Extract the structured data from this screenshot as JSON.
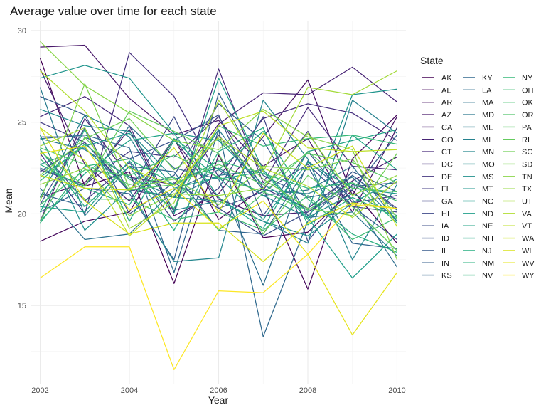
{
  "chart_data": {
    "type": "line",
    "title": "Average value over time for each state",
    "xlabel": "Year",
    "ylabel": "Mean",
    "legend_title": "State",
    "legend_position": "right",
    "grid": true,
    "xlim": [
      2001.8,
      2010.2
    ],
    "ylim": [
      10.7,
      30.5
    ],
    "x_ticks": [
      2002,
      2004,
      2006,
      2008,
      2010
    ],
    "y_ticks": [
      15,
      20,
      25,
      30
    ],
    "x": [
      2002,
      2003,
      2004,
      2005,
      2006,
      2007,
      2008,
      2009,
      2010
    ],
    "series": [
      {
        "name": "AK",
        "color": "#440154",
        "values": [
          28.5,
          21.5,
          22.3,
          16.2,
          23.2,
          18.7,
          19.0,
          21.3,
          18.4
        ]
      },
      {
        "name": "AL",
        "color": "#46085c",
        "values": [
          18.5,
          19.6,
          20.1,
          24.1,
          19.7,
          21.4,
          15.9,
          23.0,
          25.4
        ]
      },
      {
        "name": "AR",
        "color": "#471063",
        "values": [
          20.9,
          21.7,
          24.6,
          19.9,
          21.1,
          24.2,
          27.3,
          21.0,
          25.3
        ]
      },
      {
        "name": "AZ",
        "color": "#481769",
        "values": [
          29.1,
          29.2,
          26.3,
          24.3,
          25.1,
          22.6,
          24.1,
          20.1,
          24.7
        ]
      },
      {
        "name": "CA",
        "color": "#481d6f",
        "values": [
          27.9,
          22.7,
          20.7,
          24.1,
          20.8,
          19.9,
          20.1,
          21.8,
          23.1
        ]
      },
      {
        "name": "CO",
        "color": "#482475",
        "values": [
          19.6,
          25.2,
          22.0,
          21.6,
          24.9,
          26.6,
          26.5,
          28.0,
          26.1
        ]
      },
      {
        "name": "CT",
        "color": "#472a7a",
        "values": [
          25.3,
          26.4,
          24.8,
          20.1,
          27.9,
          21.7,
          25.8,
          22.6,
          22.4
        ]
      },
      {
        "name": "DC",
        "color": "#46307e",
        "values": [
          23.3,
          20.0,
          28.8,
          26.4,
          22.0,
          25.2,
          26.0,
          25.5,
          24.0
        ]
      },
      {
        "name": "DE",
        "color": "#453781",
        "values": [
          22.4,
          21.6,
          23.4,
          23.1,
          25.3,
          21.4,
          20.3,
          22.1,
          20.3
        ]
      },
      {
        "name": "FL",
        "color": "#433d84",
        "values": [
          25.0,
          23.9,
          21.3,
          20.9,
          24.3,
          21.3,
          24.5,
          20.6,
          21.0
        ]
      },
      {
        "name": "GA",
        "color": "#414487",
        "values": [
          23.5,
          20.7,
          22.8,
          19.6,
          21.4,
          25.3,
          18.5,
          21.6,
          20.8
        ]
      },
      {
        "name": "HI",
        "color": "#3e4989",
        "values": [
          22.3,
          23.9,
          21.2,
          25.3,
          20.3,
          21.2,
          22.7,
          20.4,
          20.1
        ]
      },
      {
        "name": "IA",
        "color": "#3c4f8a",
        "values": [
          20.5,
          24.7,
          20.0,
          21.7,
          20.3,
          18.8,
          20.1,
          21.5,
          21.7
        ]
      },
      {
        "name": "ID",
        "color": "#3a548c",
        "values": [
          24.2,
          24.2,
          23.0,
          24.0,
          25.4,
          19.9,
          23.4,
          20.4,
          18.6
        ]
      },
      {
        "name": "IL",
        "color": "#375a8c",
        "values": [
          26.4,
          25.4,
          21.2,
          22.1,
          26.0,
          24.0,
          19.9,
          22.3,
          21.2
        ]
      },
      {
        "name": "IN",
        "color": "#355f8d",
        "values": [
          20.1,
          21.4,
          21.1,
          17.5,
          26.6,
          22.1,
          20.9,
          21.3,
          24.3
        ]
      },
      {
        "name": "KS",
        "color": "#32648e",
        "values": [
          21.1,
          20.4,
          22.6,
          22.3,
          19.1,
          18.9,
          22.6,
          18.4,
          18.1
        ]
      },
      {
        "name": "KY",
        "color": "#30698e",
        "values": [
          24.1,
          24.3,
          23.6,
          16.8,
          24.6,
          13.3,
          19.6,
          22.1,
          20.2
        ]
      },
      {
        "name": "LA",
        "color": "#2e6e8e",
        "values": [
          22.5,
          21.5,
          24.8,
          22.5,
          21.9,
          16.1,
          22.9,
          20.8,
          17.1
        ]
      },
      {
        "name": "MA",
        "color": "#2c728e",
        "values": [
          21.4,
          18.6,
          18.9,
          21.3,
          22.4,
          21.0,
          21.3,
          22.6,
          19.6
        ]
      },
      {
        "name": "MD",
        "color": "#2a778e",
        "values": [
          24.1,
          23.5,
          22.0,
          20.9,
          22.1,
          22.4,
          19.8,
          20.1,
          17.7
        ]
      },
      {
        "name": "ME",
        "color": "#287c8e",
        "values": [
          26.9,
          19.9,
          22.6,
          20.9,
          24.6,
          21.3,
          21.1,
          22.0,
          19.6
        ]
      },
      {
        "name": "MI",
        "color": "#26818e",
        "values": [
          20.9,
          25.4,
          24.2,
          20.2,
          20.7,
          19.6,
          18.4,
          26.2,
          24.4
        ]
      },
      {
        "name": "MN",
        "color": "#24868e",
        "values": [
          22.7,
          23.6,
          21.3,
          17.4,
          17.6,
          26.2,
          23.0,
          17.5,
          21.6
        ]
      },
      {
        "name": "MO",
        "color": "#228b8d",
        "values": [
          25.7,
          24.8,
          24.5,
          21.9,
          22.5,
          21.0,
          19.8,
          21.1,
          19.9
        ]
      },
      {
        "name": "MS",
        "color": "#208f8c",
        "values": [
          24.3,
          19.1,
          21.4,
          20.9,
          20.7,
          19.6,
          18.8,
          20.6,
          21.9
        ]
      },
      {
        "name": "MT",
        "color": "#1f948c",
        "values": [
          27.4,
          28.1,
          27.4,
          24.4,
          24.0,
          21.6,
          20.2,
          26.5,
          26.8
        ]
      },
      {
        "name": "NC",
        "color": "#1f998a",
        "values": [
          22.0,
          23.7,
          24.4,
          21.4,
          22.0,
          19.7,
          22.8,
          21.4,
          21.1
        ]
      },
      {
        "name": "ND",
        "color": "#1f9e89",
        "values": [
          20.4,
          20.1,
          22.9,
          20.0,
          27.4,
          22.4,
          19.8,
          16.5,
          18.9
        ]
      },
      {
        "name": "NE",
        "color": "#20a386",
        "values": [
          19.6,
          22.2,
          24.0,
          24.4,
          20.9,
          19.2,
          23.4,
          24.0,
          24.6
        ]
      },
      {
        "name": "NH",
        "color": "#22a884",
        "values": [
          20.1,
          24.6,
          19.6,
          24.0,
          21.9,
          22.3,
          19.7,
          24.3,
          22.4
        ]
      },
      {
        "name": "NJ",
        "color": "#26ad81",
        "values": [
          23.5,
          20.4,
          22.6,
          19.1,
          23.4,
          24.7,
          19.4,
          20.9,
          19.8
        ]
      },
      {
        "name": "NM",
        "color": "#2ab07f",
        "values": [
          22.7,
          21.4,
          20.5,
          24.1,
          22.4,
          24.5,
          20.8,
          18.9,
          17.9
        ]
      },
      {
        "name": "NV",
        "color": "#31b57b",
        "values": [
          19.5,
          22.6,
          23.0,
          21.6,
          22.9,
          22.2,
          21.4,
          21.7,
          19.5
        ]
      },
      {
        "name": "NY",
        "color": "#37b878",
        "values": [
          21.8,
          23.8,
          21.9,
          20.3,
          24.8,
          23.7,
          24.1,
          24.3,
          23.8
        ]
      },
      {
        "name": "OH",
        "color": "#3fbc73",
        "values": [
          23.0,
          20.8,
          20.8,
          19.7,
          20.1,
          19.1,
          21.0,
          18.6,
          19.8
        ]
      },
      {
        "name": "OK",
        "color": "#46c06f",
        "values": [
          20.5,
          22.4,
          22.1,
          23.2,
          22.0,
          21.2,
          20.2,
          21.7,
          20.7
        ]
      },
      {
        "name": "OR",
        "color": "#50c46a",
        "values": [
          23.6,
          22.7,
          21.6,
          22.0,
          19.1,
          21.1,
          23.4,
          21.4,
          21.2
        ]
      },
      {
        "name": "PA",
        "color": "#5ac864",
        "values": [
          19.6,
          24.2,
          21.3,
          21.6,
          22.7,
          21.6,
          23.3,
          22.8,
          21.7
        ]
      },
      {
        "name": "RI",
        "color": "#65cb5e",
        "values": [
          23.4,
          21.5,
          25.6,
          24.5,
          23.3,
          18.9,
          22.1,
          20.4,
          18.0
        ]
      },
      {
        "name": "SC",
        "color": "#70cf57",
        "values": [
          22.1,
          24.1,
          25.2,
          22.4,
          24.1,
          21.9,
          20.3,
          19.9,
          23.3
        ]
      },
      {
        "name": "SD",
        "color": "#7cd250",
        "values": [
          20.7,
          27.1,
          21.4,
          21.9,
          20.5,
          22.6,
          22.4,
          23.0,
          19.8
        ]
      },
      {
        "name": "TN",
        "color": "#89d548",
        "values": [
          29.4,
          27.0,
          25.5,
          24.0,
          23.5,
          25.7,
          24.2,
          23.5,
          17.5
        ]
      },
      {
        "name": "TX",
        "color": "#95d840",
        "values": [
          21.6,
          22.5,
          19.9,
          21.1,
          21.0,
          21.4,
          24.4,
          21.0,
          22.1
        ]
      },
      {
        "name": "UT",
        "color": "#a2da37",
        "values": [
          23.7,
          24.7,
          19.2,
          20.6,
          26.2,
          22.3,
          26.9,
          26.5,
          27.8
        ]
      },
      {
        "name": "VA",
        "color": "#b0dd2f",
        "values": [
          27.8,
          25.6,
          22.5,
          21.5,
          24.2,
          22.5,
          21.5,
          19.8,
          21.8
        ]
      },
      {
        "name": "VT",
        "color": "#bddf26",
        "values": [
          24.7,
          22.9,
          18.8,
          21.0,
          24.8,
          25.6,
          23.6,
          23.4,
          23.5
        ]
      },
      {
        "name": "WA",
        "color": "#cae11f",
        "values": [
          22.1,
          21.4,
          21.3,
          23.6,
          20.1,
          24.4,
          22.5,
          23.7,
          19.3
        ]
      },
      {
        "name": "WI",
        "color": "#d8e219",
        "values": [
          24.7,
          20.7,
          18.9,
          19.5,
          19.5,
          17.4,
          19.5,
          20.6,
          20.3
        ]
      },
      {
        "name": "WV",
        "color": "#e5e419",
        "values": [
          23.3,
          23.7,
          20.2,
          21.4,
          19.2,
          20.7,
          17.8,
          13.4,
          16.8
        ]
      },
      {
        "name": "WY",
        "color": "#fde725",
        "values": [
          16.5,
          18.2,
          18.2,
          11.5,
          15.8,
          15.7,
          17.8,
          20.5,
          20.3
        ]
      }
    ]
  }
}
